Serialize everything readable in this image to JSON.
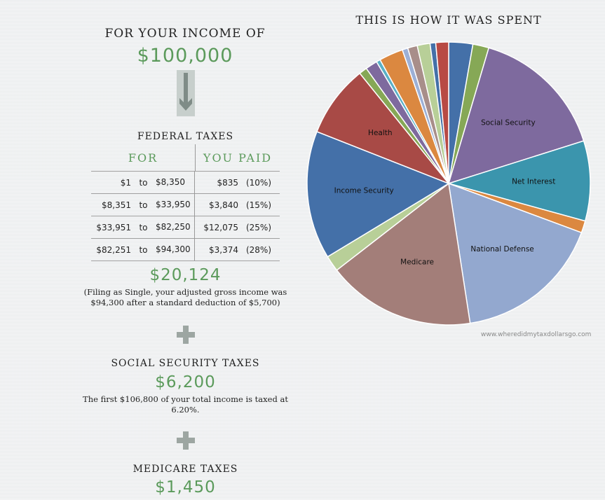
{
  "income": {
    "label": "FOR YOUR INCOME OF",
    "value": "$100,000"
  },
  "federal": {
    "label": "FEDERAL TAXES",
    "col_for": "FOR",
    "col_paid": "YOU PAID",
    "rows": [
      {
        "from": "$1",
        "to": "to",
        "end": "$8,350",
        "paid": "$835",
        "rate": "(10%)"
      },
      {
        "from": "$8,351",
        "to": "to",
        "end": "$33,950",
        "paid": "$3,840",
        "rate": "(15%)"
      },
      {
        "from": "$33,951",
        "to": "to",
        "end": "$82,250",
        "paid": "$12,075",
        "rate": "(25%)"
      },
      {
        "from": "$82,251",
        "to": "to",
        "end": "$94,300",
        "paid": "$3,374",
        "rate": "(28%)"
      }
    ],
    "total": "$20,124",
    "note": "(Filing as Single, your adjusted gross income was $94,300 after a standard deduction of $5,700)"
  },
  "social_security": {
    "label": "SOCIAL SECURITY TAXES",
    "value": "$6,200",
    "note": "The first $106,800 of your total income is taxed at 6.20%."
  },
  "medicare": {
    "label": "MEDICARE TAXES",
    "value": "$1,450"
  },
  "chart_title": "THIS IS HOW IT WAS SPENT",
  "site": "www.wheredidmytaxdollarsgo.com",
  "chart_data": {
    "type": "pie",
    "title": "THIS IS HOW IT WAS SPENT",
    "slices": [
      {
        "label": "",
        "value": 3.0,
        "color": "#4470a8"
      },
      {
        "label": "",
        "value": 2.0,
        "color": "#86a856"
      },
      {
        "label": "Social Security",
        "value": 17.0,
        "color": "#7e6a9e"
      },
      {
        "label": "Net Interest",
        "value": 10.0,
        "color": "#3b95ad"
      },
      {
        "label": "",
        "value": 1.5,
        "color": "#db8840"
      },
      {
        "label": "National Defense",
        "value": 18.5,
        "color": "#93a8cf"
      },
      {
        "label": "Medicare",
        "value": 18.5,
        "color": "#a37e79"
      },
      {
        "label": "",
        "value": 2.0,
        "color": "#b8cf98"
      },
      {
        "label": "Income Security",
        "value": 16.0,
        "color": "#4470a8"
      },
      {
        "label": "Health",
        "value": 9.0,
        "color": "#a84a46"
      },
      {
        "label": "",
        "value": 1.0,
        "color": "#86a856"
      },
      {
        "label": "",
        "value": 1.5,
        "color": "#7e6a9e"
      },
      {
        "label": "",
        "value": 0.5,
        "color": "#5ab0c6"
      },
      {
        "label": "",
        "value": 3.0,
        "color": "#db8840"
      },
      {
        "label": "",
        "value": 0.7,
        "color": "#9cb0d6"
      },
      {
        "label": "",
        "value": 1.2,
        "color": "#a88e8a"
      },
      {
        "label": "",
        "value": 1.6,
        "color": "#b8cf98"
      },
      {
        "label": "",
        "value": 0.7,
        "color": "#4470a8"
      },
      {
        "label": "",
        "value": 1.6,
        "color": "#b84a44"
      }
    ]
  }
}
